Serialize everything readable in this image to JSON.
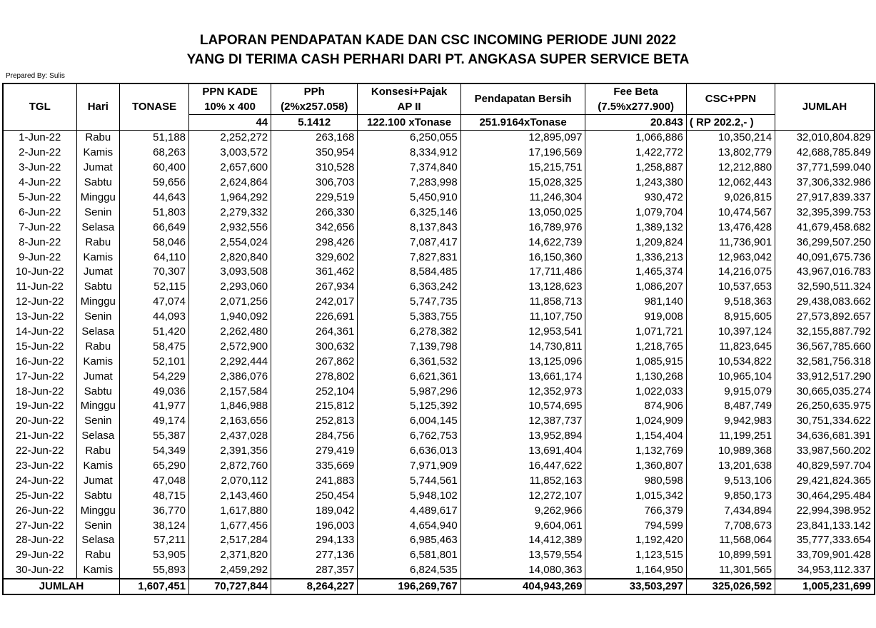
{
  "title_line1": "LAPORAN PENDAPATAN KADE DAN CSC INCOMING PERIODE JUNI 2022",
  "title_line2": "YANG DI TERIMA CASH PERHARI DARI PT. ANGKASA SUPER SERVICE BETA",
  "prepared_by": "Prepared By: Sulis",
  "headers": {
    "tgl": "TGL",
    "hari": "Hari",
    "tonase": "TONASE",
    "ppn_kade": "PPN KADE",
    "ppn_kade_sub": "10% x 400",
    "ppn_kade_val": "44",
    "pph": "PPh",
    "pph_sub": "(2%x257.058)",
    "pph_val": "5.1412",
    "konsesi": "Konsesi+Pajak",
    "konsesi_sub": "AP II",
    "konsesi_val": "122.100 xTonase",
    "pendapatan": "Pendapatan Bersih",
    "pendapatan_val": "251.9164xTonase",
    "fee": "Fee Beta",
    "fee_sub": "(7.5%x277.900)",
    "fee_val": "20.843",
    "csc": "CSC+PPN",
    "csc_val": "( RP 202.2,- )",
    "jumlah": "JUMLAH"
  },
  "rows": [
    [
      "1-Jun-22",
      "Rabu",
      "51,188",
      "2,252,272",
      "263,168",
      "6,250,055",
      "12,895,097",
      "1,066,886",
      "10,350,214",
      "32,010,804.829"
    ],
    [
      "2-Jun-22",
      "Kamis",
      "68,263",
      "3,003,572",
      "350,954",
      "8,334,912",
      "17,196,569",
      "1,422,772",
      "13,802,779",
      "42,688,785.849"
    ],
    [
      "3-Jun-22",
      "Jumat",
      "60,400",
      "2,657,600",
      "310,528",
      "7,374,840",
      "15,215,751",
      "1,258,887",
      "12,212,880",
      "37,771,599.040"
    ],
    [
      "4-Jun-22",
      "Sabtu",
      "59,656",
      "2,624,864",
      "306,703",
      "7,283,998",
      "15,028,325",
      "1,243,380",
      "12,062,443",
      "37,306,332.986"
    ],
    [
      "5-Jun-22",
      "Minggu",
      "44,643",
      "1,964,292",
      "229,519",
      "5,450,910",
      "11,246,304",
      "930,472",
      "9,026,815",
      "27,917,839.337"
    ],
    [
      "6-Jun-22",
      "Senin",
      "51,803",
      "2,279,332",
      "266,330",
      "6,325,146",
      "13,050,025",
      "1,079,704",
      "10,474,567",
      "32,395,399.753"
    ],
    [
      "7-Jun-22",
      "Selasa",
      "66,649",
      "2,932,556",
      "342,656",
      "8,137,843",
      "16,789,976",
      "1,389,132",
      "13,476,428",
      "41,679,458.682"
    ],
    [
      "8-Jun-22",
      "Rabu",
      "58,046",
      "2,554,024",
      "298,426",
      "7,087,417",
      "14,622,739",
      "1,209,824",
      "11,736,901",
      "36,299,507.250"
    ],
    [
      "9-Jun-22",
      "Kamis",
      "64,110",
      "2,820,840",
      "329,602",
      "7,827,831",
      "16,150,360",
      "1,336,213",
      "12,963,042",
      "40,091,675.736"
    ],
    [
      "10-Jun-22",
      "Jumat",
      "70,307",
      "3,093,508",
      "361,462",
      "8,584,485",
      "17,711,486",
      "1,465,374",
      "14,216,075",
      "43,967,016.783"
    ],
    [
      "11-Jun-22",
      "Sabtu",
      "52,115",
      "2,293,060",
      "267,934",
      "6,363,242",
      "13,128,623",
      "1,086,207",
      "10,537,653",
      "32,590,511.324"
    ],
    [
      "12-Jun-22",
      "Minggu",
      "47,074",
      "2,071,256",
      "242,017",
      "5,747,735",
      "11,858,713",
      "981,140",
      "9,518,363",
      "29,438,083.662"
    ],
    [
      "13-Jun-22",
      "Senin",
      "44,093",
      "1,940,092",
      "226,691",
      "5,383,755",
      "11,107,750",
      "919,008",
      "8,915,605",
      "27,573,892.657"
    ],
    [
      "14-Jun-22",
      "Selasa",
      "51,420",
      "2,262,480",
      "264,361",
      "6,278,382",
      "12,953,541",
      "1,071,721",
      "10,397,124",
      "32,155,887.792"
    ],
    [
      "15-Jun-22",
      "Rabu",
      "58,475",
      "2,572,900",
      "300,632",
      "7,139,798",
      "14,730,811",
      "1,218,765",
      "11,823,645",
      "36,567,785.660"
    ],
    [
      "16-Jun-22",
      "Kamis",
      "52,101",
      "2,292,444",
      "267,862",
      "6,361,532",
      "13,125,096",
      "1,085,915",
      "10,534,822",
      "32,581,756.318"
    ],
    [
      "17-Jun-22",
      "Jumat",
      "54,229",
      "2,386,076",
      "278,802",
      "6,621,361",
      "13,661,174",
      "1,130,268",
      "10,965,104",
      "33,912,517.290"
    ],
    [
      "18-Jun-22",
      "Sabtu",
      "49,036",
      "2,157,584",
      "252,104",
      "5,987,296",
      "12,352,973",
      "1,022,033",
      "9,915,079",
      "30,665,035.274"
    ],
    [
      "19-Jun-22",
      "Minggu",
      "41,977",
      "1,846,988",
      "215,812",
      "5,125,392",
      "10,574,695",
      "874,906",
      "8,487,749",
      "26,250,635.975"
    ],
    [
      "20-Jun-22",
      "Senin",
      "49,174",
      "2,163,656",
      "252,813",
      "6,004,145",
      "12,387,737",
      "1,024,909",
      "9,942,983",
      "30,751,334.622"
    ],
    [
      "21-Jun-22",
      "Selasa",
      "55,387",
      "2,437,028",
      "284,756",
      "6,762,753",
      "13,952,894",
      "1,154,404",
      "11,199,251",
      "34,636,681.391"
    ],
    [
      "22-Jun-22",
      "Rabu",
      "54,349",
      "2,391,356",
      "279,419",
      "6,636,013",
      "13,691,404",
      "1,132,769",
      "10,989,368",
      "33,987,560.202"
    ],
    [
      "23-Jun-22",
      "Kamis",
      "65,290",
      "2,872,760",
      "335,669",
      "7,971,909",
      "16,447,622",
      "1,360,807",
      "13,201,638",
      "40,829,597.704"
    ],
    [
      "24-Jun-22",
      "Jumat",
      "47,048",
      "2,070,112",
      "241,883",
      "5,744,561",
      "11,852,163",
      "980,598",
      "9,513,106",
      "29,421,824.365"
    ],
    [
      "25-Jun-22",
      "Sabtu",
      "48,715",
      "2,143,460",
      "250,454",
      "5,948,102",
      "12,272,107",
      "1,015,342",
      "9,850,173",
      "30,464,295.484"
    ],
    [
      "26-Jun-22",
      "Minggu",
      "36,770",
      "1,617,880",
      "189,042",
      "4,489,617",
      "9,262,966",
      "766,379",
      "7,434,894",
      "22,994,398.952"
    ],
    [
      "27-Jun-22",
      "Senin",
      "38,124",
      "1,677,456",
      "196,003",
      "4,654,940",
      "9,604,061",
      "794,599",
      "7,708,673",
      "23,841,133.142"
    ],
    [
      "28-Jun-22",
      "Selasa",
      "57,211",
      "2,517,284",
      "294,133",
      "6,985,463",
      "14,412,389",
      "1,192,420",
      "11,568,064",
      "35,777,333.654"
    ],
    [
      "29-Jun-22",
      "Rabu",
      "53,905",
      "2,371,820",
      "277,136",
      "6,581,801",
      "13,579,554",
      "1,123,515",
      "10,899,591",
      "33,709,901.428"
    ],
    [
      "30-Jun-22",
      "Kamis",
      "55,893",
      "2,459,292",
      "287,357",
      "6,824,535",
      "14,080,363",
      "1,164,950",
      "11,301,565",
      "34,953,112.337"
    ]
  ],
  "totals": [
    "JUMLAH",
    "1,607,451",
    "70,727,844",
    "8,264,227",
    "196,269,767",
    "404,943,269",
    "33,503,297",
    "325,026,592",
    "1,005,231,699"
  ]
}
